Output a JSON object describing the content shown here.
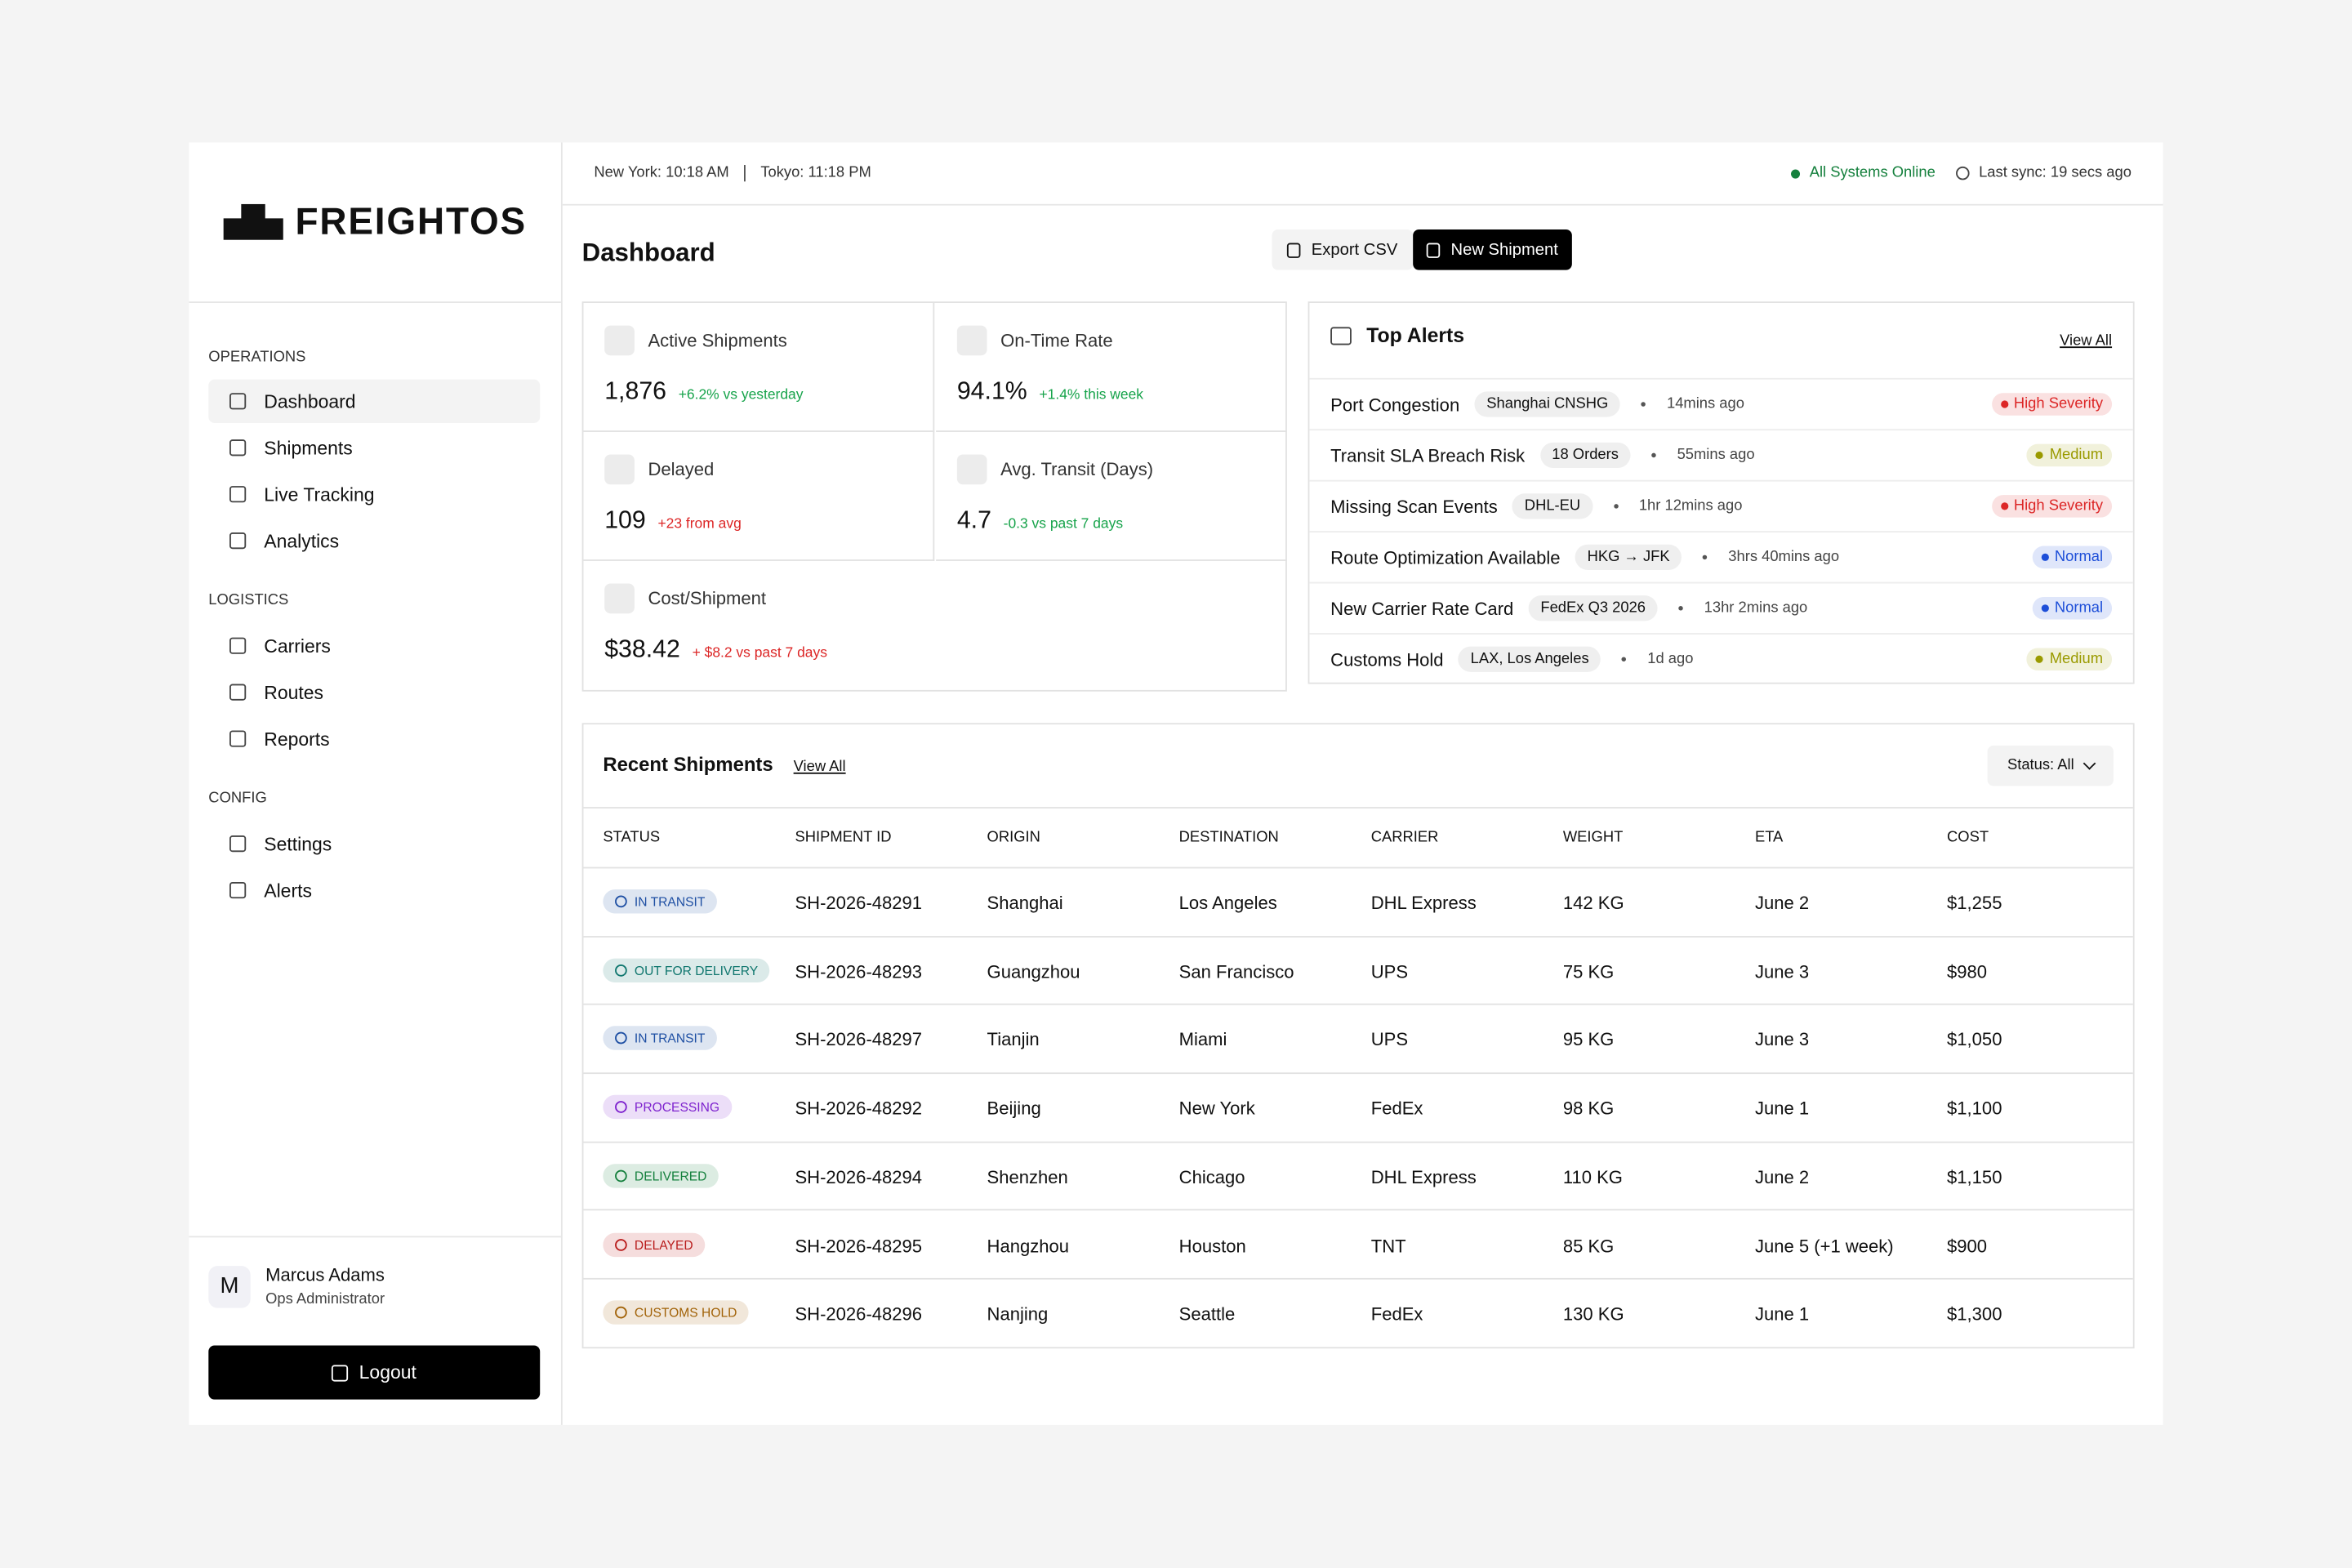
{
  "brand": "FREIGHTOS",
  "topbar": {
    "clocks": [
      "New York: 10:18 AM",
      "Tokyo: 11:18 PM"
    ],
    "status": "All Systems Online",
    "sync": "Last sync: 19 secs ago"
  },
  "nav": [
    {
      "title": "OPERATIONS",
      "items": [
        "Dashboard",
        "Shipments",
        "Live Tracking",
        "Analytics"
      ]
    },
    {
      "title": "LOGISTICS",
      "items": [
        "Carriers",
        "Routes",
        "Reports"
      ]
    },
    {
      "title": "CONFIG",
      "items": [
        "Settings",
        "Alerts"
      ]
    }
  ],
  "user": {
    "initial": "M",
    "name": "Marcus Adams",
    "role": "Ops Administrator",
    "logout": "Logout"
  },
  "header": {
    "title": "Dashboard",
    "buttons": [
      "Export CSV",
      "New Shipment"
    ]
  },
  "kpis": [
    {
      "label": "Active Shipments",
      "value": "1,876",
      "delta": "+6.2% vs yesterday",
      "delta_color": "#16a34a"
    },
    {
      "label": "On-Time Rate",
      "value": "94.1%",
      "delta": "+1.4% this week",
      "delta_color": "#16a34a"
    },
    {
      "label": "Delayed",
      "value": "109",
      "delta": "+23 from avg",
      "delta_color": "#dc2626"
    },
    {
      "label": "Avg. Transit (Days)",
      "value": "4.7",
      "delta": "-0.3 vs past 7 days",
      "delta_color": "#16a34a"
    },
    {
      "label": "Cost/Shipment",
      "value": "$38.42",
      "delta": "+ $8.2 vs past 7 days",
      "delta_color": "#dc2626"
    }
  ],
  "alerts": {
    "title": "Top Alerts",
    "view_all": "View All",
    "items": [
      {
        "title": "Port Congestion",
        "tag": "Shanghai CNSHG",
        "time": "14mins ago",
        "severity": "High Severity",
        "color": "#dc2626"
      },
      {
        "title": "Transit SLA Breach Risk",
        "tag": "18 Orders",
        "time": "55mins ago",
        "severity": "Medium",
        "color": "#9a9a00"
      },
      {
        "title": "Missing Scan Events",
        "tag": "DHL-EU",
        "time": "1hr 12mins ago",
        "severity": "High Severity",
        "color": "#dc2626"
      },
      {
        "title": "Route Optimization Available",
        "tag": "HKG → JFK",
        "time": "3hrs 40mins ago",
        "severity": "Normal",
        "color": "#1d4ed8"
      },
      {
        "title": "New Carrier Rate Card",
        "tag": "FedEx Q3 2026",
        "time": "13hr 2mins ago",
        "severity": "Normal",
        "color": "#1d4ed8"
      },
      {
        "title": "Customs Hold",
        "tag": "LAX, Los Angeles",
        "time": "1d ago",
        "severity": "Medium",
        "color": "#9a9a00"
      }
    ]
  },
  "shipments": {
    "title": "Recent Shipments",
    "view_all": "View All",
    "filter": "Status: All",
    "columns": [
      "STATUS",
      "SHIPMENT ID",
      "ORIGIN",
      "DESTINATION",
      "CARRIER",
      "WEIGHT",
      "ETA",
      "COST"
    ],
    "rows": [
      {
        "status": "IN TRANSIT",
        "status_color": "#1e4fa3",
        "cells": [
          "SH-2026-48291",
          "Shanghai",
          "Los Angeles",
          "DHL Express",
          "142 KG",
          "June 2",
          "$1,255"
        ]
      },
      {
        "status": "OUT FOR DELIVERY",
        "status_color": "#0f766e",
        "cells": [
          "SH-2026-48293",
          "Guangzhou",
          "San Francisco",
          "UPS",
          "75 KG",
          "June 3",
          "$980"
        ]
      },
      {
        "status": "IN TRANSIT",
        "status_color": "#1e4fa3",
        "cells": [
          "SH-2026-48297",
          "Tianjin",
          "Miami",
          "UPS",
          "95 KG",
          "June 3",
          "$1,050"
        ]
      },
      {
        "status": "PROCESSING",
        "status_color": "#7e22ce",
        "cells": [
          "SH-2026-48292",
          "Beijing",
          "New York",
          "FedEx",
          "98 KG",
          "June 1",
          "$1,100"
        ]
      },
      {
        "status": "DELIVERED",
        "status_color": "#15803d",
        "cells": [
          "SH-2026-48294",
          "Shenzhen",
          "Chicago",
          "DHL Express",
          "110 KG",
          "June 2",
          "$1,150"
        ]
      },
      {
        "status": "DELAYED",
        "status_color": "#b91c1c",
        "cells": [
          "SH-2026-48295",
          "Hangzhou",
          "Houston",
          "TNT",
          "85 KG",
          "June 5 (+1 week)",
          "$900"
        ]
      },
      {
        "status": "CUSTOMS HOLD",
        "status_color": "#a16207",
        "cells": [
          "SH-2026-48296",
          "Nanjing",
          "Seattle",
          "FedEx",
          "130 KG",
          "June 1",
          "$1,300"
        ]
      }
    ]
  }
}
